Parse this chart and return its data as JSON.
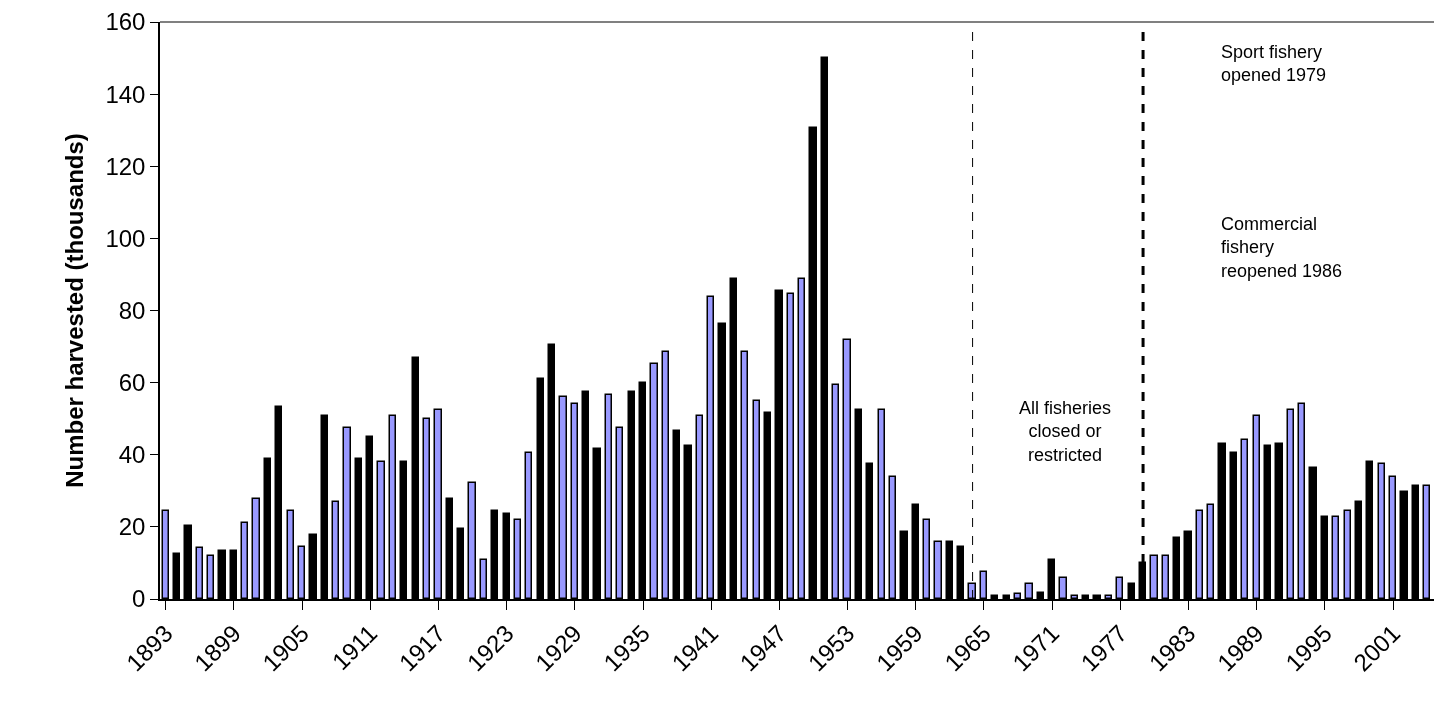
{
  "chart_data": {
    "type": "bar",
    "ylabel": "Number harvested (thousands)",
    "x": [
      1893,
      1894,
      1895,
      1896,
      1897,
      1898,
      1899,
      1900,
      1901,
      1902,
      1903,
      1904,
      1905,
      1906,
      1907,
      1908,
      1909,
      1910,
      1911,
      1912,
      1913,
      1914,
      1915,
      1916,
      1917,
      1918,
      1919,
      1920,
      1921,
      1922,
      1923,
      1924,
      1925,
      1926,
      1927,
      1928,
      1929,
      1930,
      1931,
      1932,
      1933,
      1934,
      1935,
      1936,
      1937,
      1938,
      1939,
      1940,
      1941,
      1942,
      1943,
      1944,
      1945,
      1946,
      1947,
      1948,
      1949,
      1950,
      1951,
      1952,
      1953,
      1954,
      1955,
      1956,
      1957,
      1958,
      1959,
      1960,
      1961,
      1962,
      1963,
      1964,
      1965,
      1966,
      1967,
      1968,
      1969,
      1970,
      1971,
      1972,
      1973,
      1974,
      1975,
      1976,
      1977,
      1978,
      1979,
      1980,
      1981,
      1982,
      1983,
      1984,
      1985,
      1986,
      1987,
      1988,
      1989,
      1990,
      1991,
      1992,
      1993,
      1994,
      1995,
      1996,
      1997,
      1998,
      1999,
      2000,
      2001,
      2002,
      2003,
      2004
    ],
    "values": [
      24.4,
      12.6,
      20.2,
      14.2,
      11.8,
      13.4,
      13.4,
      21,
      27.8,
      38.9,
      53.3,
      24.4,
      14.3,
      17.7,
      50.8,
      27,
      47.4,
      38.9,
      44.9,
      38,
      50.8,
      38,
      66.9,
      49.9,
      52.5,
      27.8,
      19.4,
      32.1,
      10.9,
      24.4,
      23.6,
      21.9,
      40.6,
      60.9,
      70.3,
      55.9,
      54.2,
      57.5,
      41.5,
      56.6,
      47.4,
      57.5,
      60,
      65.2,
      68.6,
      46.5,
      42.3,
      50.8,
      83.8,
      76.2,
      88.8,
      68.6,
      55,
      51.7,
      85.4,
      84.7,
      88.8,
      130.5,
      149.9,
      59.3,
      71.9,
      52.5,
      37.3,
      52.5,
      33.8,
      18.6,
      26.2,
      21.9,
      15.9,
      15.9,
      14.3,
      4.1,
      7.5,
      0.8,
      0.8,
      1.5,
      4.1,
      1.6,
      10.9,
      5.7,
      0.8,
      0.8,
      0.8,
      0.8,
      5.7,
      4.1,
      10.1,
      11.8,
      11.8,
      16.8,
      18.6,
      24.4,
      26.2,
      43.1,
      40.6,
      44,
      50.8,
      42.3,
      43.1,
      52.5,
      54.2,
      36.4,
      22.8,
      22.8,
      24.4,
      27,
      38,
      37.3,
      33.8,
      29.6,
      31.2,
      31.2
    ],
    "colors": [
      "#9999ff",
      "#000000",
      "#000000",
      "#9999ff",
      "#9999ff",
      "#000000",
      "#000000",
      "#9999ff",
      "#9999ff",
      "#000000",
      "#000000",
      "#9999ff",
      "#9999ff",
      "#000000",
      "#000000",
      "#9999ff",
      "#9999ff",
      "#000000",
      "#000000",
      "#9999ff",
      "#9999ff",
      "#000000",
      "#000000",
      "#9999ff",
      "#9999ff",
      "#000000",
      "#000000",
      "#9999ff",
      "#9999ff",
      "#000000",
      "#000000",
      "#9999ff",
      "#9999ff",
      "#000000",
      "#000000",
      "#9999ff",
      "#9999ff",
      "#000000",
      "#000000",
      "#9999ff",
      "#9999ff",
      "#000000",
      "#000000",
      "#9999ff",
      "#9999ff",
      "#000000",
      "#000000",
      "#9999ff",
      "#9999ff",
      "#000000",
      "#000000",
      "#9999ff",
      "#9999ff",
      "#000000",
      "#000000",
      "#9999ff",
      "#9999ff",
      "#000000",
      "#000000",
      "#9999ff",
      "#9999ff",
      "#000000",
      "#000000",
      "#9999ff",
      "#9999ff",
      "#000000",
      "#000000",
      "#9999ff",
      "#9999ff",
      "#000000",
      "#000000",
      "#9999ff",
      "#9999ff",
      "#000000",
      "#000000",
      "#9999ff",
      "#9999ff",
      "#000000",
      "#000000",
      "#9999ff",
      "#9999ff",
      "#000000",
      "#000000",
      "#9999ff",
      "#9999ff",
      "#000000",
      "#000000",
      "#9999ff",
      "#9999ff",
      "#000000",
      "#000000",
      "#9999ff",
      "#9999ff",
      "#000000",
      "#000000",
      "#9999ff",
      "#9999ff",
      "#000000",
      "#000000",
      "#9999ff",
      "#9999ff",
      "#000000",
      "#000000",
      "#9999ff",
      "#9999ff",
      "#000000",
      "#000000",
      "#9999ff",
      "#9999ff",
      "#000000",
      "#000000",
      "#9999ff"
    ],
    "xlim": [
      1892.5,
      2004.6
    ],
    "xticks": [
      1893,
      1899,
      1905,
      1911,
      1917,
      1923,
      1929,
      1935,
      1941,
      1947,
      1953,
      1959,
      1965,
      1971,
      1977,
      1983,
      1989,
      1995,
      2001
    ],
    "ylim": [
      0,
      160
    ],
    "yticks": [
      0,
      20,
      40,
      60,
      80,
      100,
      120,
      140,
      160
    ],
    "ref_lines": [
      {
        "axis": "x",
        "value": 1964,
        "label": null,
        "color": "#000000",
        "line_style": "dashed"
      },
      {
        "axis": "x",
        "value": 1979,
        "label": null,
        "color": "#000000",
        "line_style": "dotted"
      }
    ],
    "annotations": [
      "All fisheries\nclosed or\nrestricted",
      "Sport fishery\nopened 1979",
      "Commercial\nfishery\nreopened 1986"
    ]
  }
}
